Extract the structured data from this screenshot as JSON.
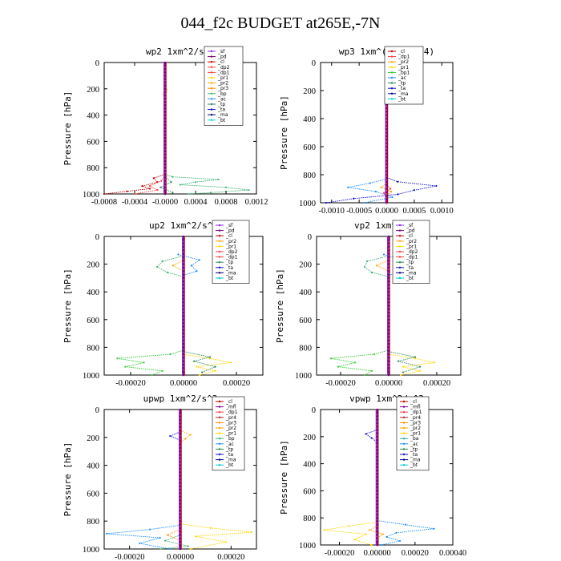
{
  "title": "044_f2c  BUDGET at265E,-7N",
  "colors": {
    "sf": "#8a2be2",
    "pd": "#7a007a",
    "cl": "#c00000",
    "dp2": "#ff4040",
    "dp1": "#ff4040",
    "pr1": "#ffd700",
    "pr2": "#ffa500",
    "pr3": "#ff8c00",
    "pr4": "#b22222",
    "bp": "#3cb371",
    "bp1": "#32cd32",
    "ac": "#1e90ff",
    "tp": "#2e8b57",
    "ta": "#1010c8",
    "ma": "#000080",
    "bt": "#00ced1",
    "mfl": "#8b008b",
    "ba": "#20b2aa"
  },
  "chart_data": [
    {
      "type": "line",
      "name": "wp2",
      "title": "wp2   1xm^2/s^3",
      "ylabel": "Pressure [hPa]",
      "xlim": [
        -0.0008,
        0.0012
      ],
      "ylim": [
        0,
        1000
      ],
      "xticks": [
        -0.0008,
        -0.0004,
        0,
        0.0004,
        0.0008,
        0.0012
      ],
      "xticklabels": [
        "-0.0008",
        "-0.0004",
        "-0.0000",
        "0.0004",
        "0.0008",
        "0.0012"
      ],
      "yticks": [
        0,
        200,
        400,
        600,
        800,
        1000
      ],
      "legend": [
        "_sf",
        "_pd",
        "_cl",
        "_dp2",
        "_dp1",
        "_pr1",
        "_pr2",
        "_pr3",
        "_bp",
        "_ac",
        "_tp",
        "_ta",
        "_ma",
        "_bt"
      ],
      "series": [
        {
          "key": "bp",
          "p": [
            850,
            870,
            890,
            910,
            930,
            950,
            970,
            990,
            1000
          ],
          "x": [
            0,
            0.0001,
            0.0007,
            0.0004,
            0.0002,
            0.0008,
            0.0011,
            0.0006,
            0.0003
          ]
        },
        {
          "key": "cl",
          "p": [
            850,
            880,
            910,
            940,
            960,
            980,
            1000
          ],
          "x": [
            0,
            -0.00015,
            -0.0001,
            -0.0003,
            -0.0002,
            -0.0005,
            -0.0008
          ]
        },
        {
          "key": "dp2",
          "p": [
            860,
            900,
            940,
            970,
            1000
          ],
          "x": [
            0,
            -5e-05,
            -0.0002,
            -0.0001,
            -0.0004
          ]
        },
        {
          "key": "tp",
          "p": [
            870,
            910,
            950,
            990
          ],
          "x": [
            0,
            8e-05,
            -6e-05,
            0.0001
          ]
        },
        {
          "key": "pr2",
          "p": [
            180,
            210,
            240,
            270
          ],
          "x": [
            0,
            2e-05,
            -2e-05,
            0
          ]
        }
      ]
    },
    {
      "type": "line",
      "name": "wp3",
      "title": "wp3   1xm^(3) s^(-4)",
      "ylabel": "Pressure [hPa]",
      "xlim": [
        -0.0012,
        0.0012
      ],
      "ylim": [
        0,
        1000
      ],
      "xticks": [
        -0.001,
        -0.0005,
        0,
        0.0005,
        0.001
      ],
      "xticklabels": [
        "-0.0010",
        "-0.0005",
        "0.0000",
        "0.0005",
        "0.0010"
      ],
      "yticks": [
        0,
        200,
        400,
        600,
        800,
        1000
      ],
      "legend": [
        "_cl",
        "_dp1",
        "_pr2",
        "_pr1",
        "_bp1",
        "_ac",
        "_tp",
        "_ta",
        "_ma",
        "_bt"
      ],
      "series": [
        {
          "key": "ta",
          "p": [
            820,
            850,
            880,
            910,
            940,
            970,
            1000
          ],
          "x": [
            0,
            0.0002,
            0.0009,
            0.0005,
            0.0002,
            -0.0006,
            -0.0011
          ]
        },
        {
          "key": "ac",
          "p": [
            830,
            860,
            890,
            920,
            960,
            1000
          ],
          "x": [
            0,
            -0.0003,
            -0.0007,
            -0.0002,
            0.0001,
            -0.0004
          ]
        },
        {
          "key": "pr2",
          "p": [
            860,
            890,
            920,
            950
          ],
          "x": [
            0,
            -0.0001,
            8e-05,
            0
          ]
        },
        {
          "key": "dp1",
          "p": [
            870,
            900,
            930,
            960
          ],
          "x": [
            0,
            7e-05,
            -5e-05,
            0
          ]
        }
      ]
    },
    {
      "type": "line",
      "name": "up2",
      "title": "up2   1xm^2/s^3",
      "ylabel": "Pressure [hPa]",
      "xlim": [
        -0.0003,
        0.0003
      ],
      "ylim": [
        0,
        1000
      ],
      "xticks": [
        -0.0002,
        0,
        0.0002
      ],
      "xticklabels": [
        "-0.00020",
        "0.00000",
        "0.00020"
      ],
      "yticks": [
        0,
        200,
        400,
        600,
        800,
        1000
      ],
      "legend": [
        "_sf",
        "_pd",
        "_cl",
        "_pr2",
        "_pr1",
        "_dp2",
        "_dp1",
        "_tp",
        "_ta",
        "_ma",
        "_bt"
      ],
      "series": [
        {
          "key": "bp1",
          "p": [
            820,
            850,
            880,
            910,
            940,
            970,
            1000
          ],
          "x": [
            0,
            -5e-05,
            -0.00025,
            -0.00015,
            -0.00022,
            -8e-05,
            -0.00012
          ]
        },
        {
          "key": "pr1",
          "p": [
            850,
            880,
            910,
            940,
            970,
            1000
          ],
          "x": [
            0,
            0.0001,
            0.00018,
            5e-05,
            0.00012,
            6e-05
          ]
        },
        {
          "key": "ac",
          "p": [
            130,
            170,
            210,
            250,
            280
          ],
          "x": [
            -2e-05,
            6e-05,
            3e-05,
            5e-05,
            0
          ]
        },
        {
          "key": "bp",
          "p": [
            140,
            180,
            220,
            260,
            290
          ],
          "x": [
            0,
            -8e-05,
            -0.0001,
            -6e-05,
            0
          ]
        },
        {
          "key": "tp",
          "p": [
            830,
            870,
            900,
            940,
            980
          ],
          "x": [
            0,
            0.0001,
            4e-05,
            0.00012,
            7e-05
          ]
        },
        {
          "key": "pr2",
          "p": [
            170,
            210,
            250
          ],
          "x": [
            0,
            -4e-05,
            0
          ]
        }
      ]
    },
    {
      "type": "line",
      "name": "vp2",
      "title": "vp2   1xm^2/s^3",
      "ylabel": "Pressure [hPa]",
      "xlim": [
        -0.0003,
        0.0003
      ],
      "ylim": [
        0,
        1000
      ],
      "xticks": [
        -0.0002,
        0,
        0.0002
      ],
      "xticklabels": [
        "-0.00020",
        "0.00000",
        "0.00020"
      ],
      "yticks": [
        0,
        200,
        400,
        600,
        800,
        1000
      ],
      "legend": [
        "_sf",
        "_pd",
        "_cl",
        "_pr2",
        "_pr1",
        "_dp2",
        "_dp1",
        "_tp",
        "_ta",
        "_ma",
        "_bt"
      ],
      "series": [
        {
          "key": "bp1",
          "p": [
            820,
            850,
            880,
            910,
            940,
            970,
            1000
          ],
          "x": [
            0,
            -6e-05,
            -0.00024,
            -0.00014,
            -0.00021,
            -7e-05,
            -0.0001
          ]
        },
        {
          "key": "pr1",
          "p": [
            850,
            880,
            910,
            940,
            970,
            1000
          ],
          "x": [
            0,
            0.00011,
            0.00019,
            6e-05,
            0.00013,
            5e-05
          ]
        },
        {
          "key": "ac",
          "p": [
            130,
            170,
            210,
            250,
            280
          ],
          "x": [
            -2e-05,
            5e-05,
            3e-05,
            6e-05,
            0
          ]
        },
        {
          "key": "bp",
          "p": [
            140,
            180,
            220,
            260,
            290
          ],
          "x": [
            0,
            -9e-05,
            -0.0001,
            -7e-05,
            0
          ]
        },
        {
          "key": "tp",
          "p": [
            830,
            870,
            900,
            940,
            980
          ],
          "x": [
            0,
            0.00011,
            4e-05,
            0.00013,
            6e-05
          ]
        },
        {
          "key": "pr2",
          "p": [
            170,
            210,
            250
          ],
          "x": [
            0,
            -5e-05,
            0
          ]
        }
      ]
    },
    {
      "type": "line",
      "name": "upwp",
      "title": "upwp   1xm^2/s^3",
      "ylabel": "Pressure [hPa]",
      "xlim": [
        -0.0003,
        0.0003
      ],
      "ylim": [
        0,
        1000
      ],
      "xticks": [
        -0.0002,
        0,
        0.0002
      ],
      "xticklabels": [
        "-0.00020",
        "0.00000",
        "0.00020"
      ],
      "yticks": [
        0,
        200,
        400,
        600,
        800,
        1000
      ],
      "legend": [
        "_cl",
        "_mfl",
        "_dp1",
        "_pr4",
        "_pr3",
        "_pr2",
        "_pr1",
        "_bp",
        "_ac",
        "_tp",
        "_ta",
        "_ma",
        "_bt"
      ],
      "series": [
        {
          "key": "ac",
          "p": [
            830,
            860,
            890,
            920,
            960,
            1000
          ],
          "x": [
            0,
            -0.00012,
            -0.00029,
            -8e-05,
            -0.00016,
            -4e-05
          ]
        },
        {
          "key": "pr1",
          "p": [
            820,
            850,
            880,
            910,
            950,
            1000
          ],
          "x": [
            0,
            0.00012,
            0.00028,
            6e-05,
            0.00018,
            4e-05
          ]
        },
        {
          "key": "pr2",
          "p": [
            150,
            180,
            210,
            240
          ],
          "x": [
            0,
            4e-05,
            2e-05,
            0
          ]
        },
        {
          "key": "ta",
          "p": [
            160,
            190,
            220
          ],
          "x": [
            0,
            -4e-05,
            0
          ]
        },
        {
          "key": "bp",
          "p": [
            900,
            940,
            980,
            1000
          ],
          "x": [
            0,
            -6e-05,
            3e-05,
            -8e-05
          ]
        },
        {
          "key": "pr3",
          "p": [
            860,
            900,
            940
          ],
          "x": [
            0,
            -5e-05,
            0
          ]
        }
      ]
    },
    {
      "type": "line",
      "name": "vpwp",
      "title": "vpwp   1xm^2/s^3",
      "ylabel": "Pressure [hPa]",
      "xlim": [
        -0.0003,
        0.0004
      ],
      "ylim": [
        0,
        1000
      ],
      "xticks": [
        -0.0002,
        0,
        0.0002,
        0.0004
      ],
      "xticklabels": [
        "-0.00020",
        "0.00000",
        "0.00020",
        "0.00040"
      ],
      "yticks": [
        0,
        200,
        400,
        600,
        800,
        1000
      ],
      "legend": [
        "_cl",
        "_mfl",
        "_dp1",
        "_pr4",
        "_pr3",
        "_pr2",
        "_pr1",
        "_ba",
        "_ac",
        "_tp",
        "_ta",
        "_ma",
        "_bt"
      ],
      "series": [
        {
          "key": "ac",
          "p": [
            820,
            850,
            880,
            910,
            940,
            970,
            1000
          ],
          "x": [
            0,
            0.00015,
            0.0003,
            0.0001,
            5e-05,
            0.00012,
            2e-05
          ]
        },
        {
          "key": "pr1",
          "p": [
            830,
            860,
            890,
            920,
            960,
            1000
          ],
          "x": [
            0,
            -0.00015,
            -0.00028,
            -6e-05,
            -0.00012,
            -3e-05
          ]
        },
        {
          "key": "ta",
          "p": [
            150,
            180,
            210,
            240
          ],
          "x": [
            0,
            -6e-05,
            -3e-05,
            0
          ]
        },
        {
          "key": "pr2",
          "p": [
            860,
            890,
            920,
            950
          ],
          "x": [
            0,
            -4e-05,
            3e-05,
            0
          ]
        }
      ]
    }
  ]
}
